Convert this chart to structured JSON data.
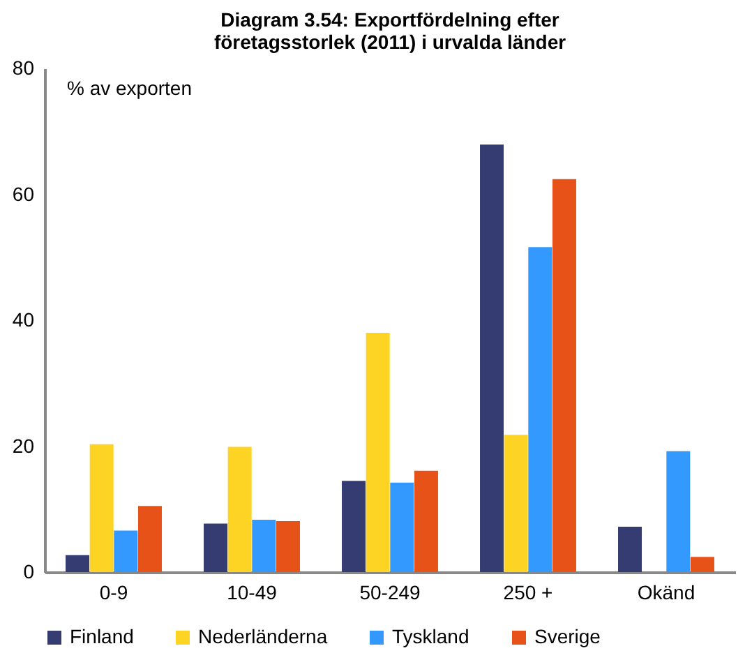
{
  "chart_data": {
    "type": "bar",
    "title": "Diagram 3.54: Exportfördelning efter företagsstorlek (2011) i urvalda länder",
    "ylabel": "% av exporten",
    "categories": [
      "0-9",
      "10-49",
      "50-249",
      "250 +",
      "Okänd"
    ],
    "series": [
      {
        "name": "Finland",
        "color": "#353c72",
        "values": [
          2.7,
          7.7,
          14.5,
          67.9,
          7.2
        ]
      },
      {
        "name": "Nederländerna",
        "color": "#fed424",
        "values": [
          20.3,
          19.9,
          38.0,
          21.8,
          null
        ]
      },
      {
        "name": "Tyskland",
        "color": "#3399fe",
        "values": [
          6.6,
          8.3,
          14.2,
          51.6,
          19.2
        ]
      },
      {
        "name": "Sverige",
        "color": "#e75219",
        "values": [
          10.5,
          8.1,
          16.1,
          62.4,
          2.4
        ]
      }
    ],
    "ylim": [
      0,
      80
    ],
    "yticks": [
      0,
      20,
      40,
      60,
      80
    ],
    "grid": false,
    "legend": "bottom"
  }
}
